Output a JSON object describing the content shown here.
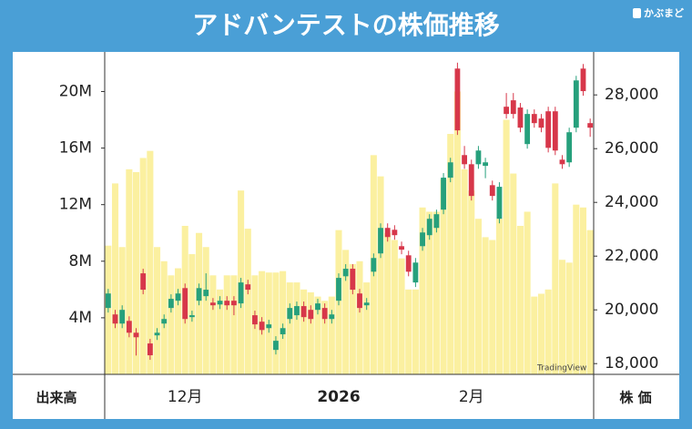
{
  "title": "アドバンテストの株価推移",
  "logo": "かぶまど",
  "chart_data": {
    "type": "candlestick",
    "categories": [
      null,
      null,
      null,
      null,
      null,
      null,
      null,
      null,
      null,
      null,
      null,
      "12月",
      null,
      null,
      null,
      null,
      null,
      null,
      null,
      null,
      null,
      null,
      null,
      null,
      null,
      null,
      null,
      null,
      null,
      null,
      null,
      null,
      null,
      "2026",
      null,
      null,
      null,
      null,
      null,
      null,
      null,
      null,
      null,
      null,
      null,
      null,
      null,
      null,
      null,
      null,
      null,
      null,
      "2月",
      null,
      null,
      null,
      null,
      null,
      null,
      null,
      null,
      null,
      null,
      null,
      null,
      null,
      null,
      null,
      null,
      null
    ],
    "open": [
      20070,
      19830,
      19490,
      19590,
      19150,
      21360,
      18750,
      19050,
      19490,
      20070,
      20340,
      20810,
      19730,
      20340,
      20510,
      20270,
      20200,
      20340,
      20340,
      20240,
      20950,
      19800,
      19560,
      19320,
      18510,
      19090,
      19660,
      19800,
      20140,
      20000,
      20000,
      20070,
      19660,
      20340,
      21250,
      21530,
      20610,
      20170,
      21420,
      22100,
      23050,
      22980,
      22370,
      22030,
      21020,
      22370,
      22780,
      23050,
      23730,
      24920,
      28980,
      25760,
      25420,
      25420,
      25360,
      24640,
      23390,
      27560,
      27800,
      27530,
      26170,
      27290,
      27120,
      27390,
      27390,
      25590,
      25490,
      26780,
      28980,
      26950
    ],
    "high": [
      20780,
      20000,
      20170,
      19760,
      19320,
      21530,
      18920,
      19320,
      19830,
      20580,
      20780,
      20980,
      19970,
      20980,
      21360,
      20440,
      20510,
      20510,
      20510,
      21190,
      21120,
      19970,
      19730,
      19630,
      19020,
      19490,
      20240,
      20310,
      20310,
      20170,
      20410,
      20240,
      20000,
      21360,
      21700,
      21700,
      20780,
      20440,
      22100,
      23220,
      23220,
      23150,
      22540,
      22200,
      21930,
      23050,
      23560,
      23730,
      25090,
      25660,
      29200,
      26100,
      25590,
      26100,
      25660,
      24810,
      24750,
      28070,
      28070,
      27700,
      27460,
      27460,
      27290,
      27560,
      27560,
      25760,
      26780,
      28710,
      29150,
      27120
    ],
    "low": [
      19900,
      19320,
      19320,
      18980,
      18300,
      20580,
      18140,
      18880,
      19320,
      19900,
      20170,
      19490,
      19560,
      20170,
      20340,
      20000,
      20030,
      20000,
      19800,
      20070,
      20580,
      19290,
      19080,
      19150,
      18340,
      18920,
      19490,
      19630,
      19560,
      19490,
      19830,
      19490,
      19490,
      20170,
      21080,
      20580,
      19900,
      20000,
      21250,
      21930,
      22540,
      22610,
      22070,
      21250,
      20850,
      22200,
      22610,
      22880,
      23560,
      24750,
      26510,
      25250,
      24070,
      25250,
      24900,
      24070,
      23220,
      27120,
      27120,
      26610,
      26000,
      26780,
      26610,
      25860,
      25760,
      25250,
      25320,
      26610,
      27970,
      26440
    ],
    "close": [
      20610,
      19490,
      20000,
      19150,
      18980,
      20750,
      18310,
      19150,
      19660,
      20410,
      20610,
      19660,
      19800,
      20810,
      20750,
      20170,
      20340,
      20170,
      20170,
      21020,
      20750,
      19460,
      19250,
      19460,
      18850,
      19320,
      20070,
      20140,
      19730,
      19660,
      20240,
      19660,
      19830,
      21190,
      21530,
      20750,
      20070,
      20270,
      21930,
      23050,
      22710,
      22780,
      22240,
      21420,
      21760,
      22880,
      23390,
      23560,
      24920,
      25490,
      26680,
      25420,
      24240,
      25930,
      25490,
      24240,
      24580,
      27290,
      27290,
      26780,
      27290,
      26950,
      26780,
      26030,
      25930,
      25420,
      26610,
      28540,
      28140,
      26780
    ],
    "up_color": "#26a07c",
    "down_color": "#d7374a",
    "volume": {
      "name": "出来高",
      "color": "#fbf0a0",
      "axis": "y2",
      "values": [
        9.1,
        13.5,
        9,
        14.5,
        14.3,
        15.3,
        15.8,
        9,
        8,
        7,
        7.5,
        10.5,
        8.5,
        10,
        9,
        7,
        6,
        7,
        7,
        13,
        10.3,
        7,
        7.3,
        7.2,
        7.2,
        7.3,
        6.5,
        6.5,
        6,
        5.8,
        5.5,
        5.2,
        5.5,
        10.2,
        8.8,
        7.8,
        8,
        6.5,
        15.5,
        14,
        10,
        9.5,
        8.2,
        6,
        6,
        11.8,
        11.5,
        11.5,
        13.8,
        17,
        20,
        14.5,
        13,
        11,
        9.7,
        9.5,
        11,
        18,
        14.2,
        10.5,
        11.5,
        5.5,
        5.7,
        6,
        13.5,
        8.1,
        7.9,
        12,
        11.8,
        10.2
      ]
    },
    "price_label": "株 価",
    "ylim": [
      17600,
      29600
    ],
    "yticks": [
      {
        "value": 18000,
        "label": "18,000"
      },
      {
        "value": 20000,
        "label": "20,000"
      },
      {
        "value": 22000,
        "label": "22,000"
      },
      {
        "value": 24000,
        "label": "24,000"
      },
      {
        "value": 26000,
        "label": "26,000"
      },
      {
        "value": 28000,
        "label": "28,000"
      }
    ],
    "y2lim": [
      0,
      22.8
    ],
    "y2ticks": [
      {
        "value": 4,
        "label": "4M"
      },
      {
        "value": 8,
        "label": "8M"
      },
      {
        "value": 12,
        "label": "12M"
      },
      {
        "value": 16,
        "label": "16M"
      },
      {
        "value": 20,
        "label": "20M"
      }
    ],
    "watermark": "TradingView"
  }
}
